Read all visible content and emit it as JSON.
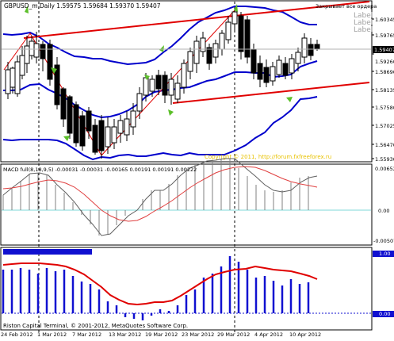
{
  "main": {
    "header": "GBPUSD_m,Daily  1.59575 1.59684 1.59370 1.59407",
    "overlay_text": "Закрывает все ордера",
    "labels": [
      "Label",
      "Label",
      "Label"
    ],
    "price_ticks": [
      "1.60345",
      "1.59765",
      "1.59260",
      "1.58690",
      "1.58135",
      "1.57580",
      "1.57025",
      "1.56470",
      "1.55930"
    ],
    "current_price": "1.59407",
    "watermark": "Copyright © 2011, http://forum.fxfreeforex.ru"
  },
  "macd": {
    "header": "MACD full(8,18,9,5) -0.00031 -0.00031 -0.00165 0.00191 0.00191 0.00222",
    "ticks": [
      "0.00652",
      "0.00",
      "-0.00507"
    ]
  },
  "bottom": {
    "ticks": [
      "1.00",
      "0.00"
    ],
    "copyright": "Riston Capital Terminal, © 2001-2012, MetaQuotes Software Corp."
  },
  "time_axis": [
    "24 Feb 2012",
    "1 Mar 2012",
    "7 Mar 2012",
    "13 Mar 2012",
    "19 Mar 2012",
    "23 Mar 2012",
    "29 Mar 2012",
    "4 Apr 2012",
    "10 Apr 2012"
  ],
  "colors": {
    "background": "#ffffff",
    "border": "#000000",
    "trend": "#e00000",
    "band": "#0000cc",
    "arrow": "#5cbf2a",
    "zero": "#7fd8d8",
    "watermark": "#e8c200"
  }
}
